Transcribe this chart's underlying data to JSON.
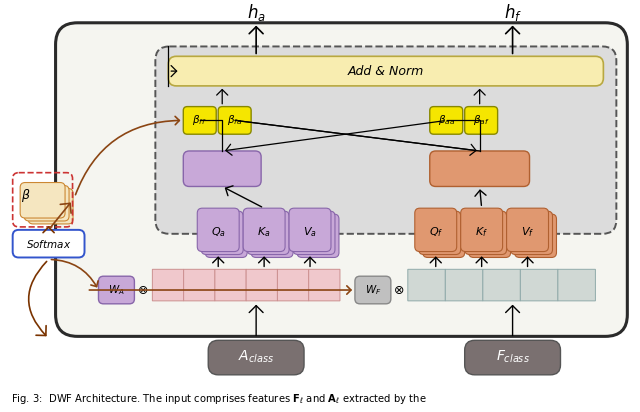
{
  "fig_width": 6.4,
  "fig_height": 4.12,
  "dpi": 100,
  "bg_color": "#ffffff",
  "caption": "Fig. 3:  DWF Architecture. The input comprises features $\\mathbf{F}_\\ell$ and $\\mathbf{A}_\\ell$ extracted by the"
}
